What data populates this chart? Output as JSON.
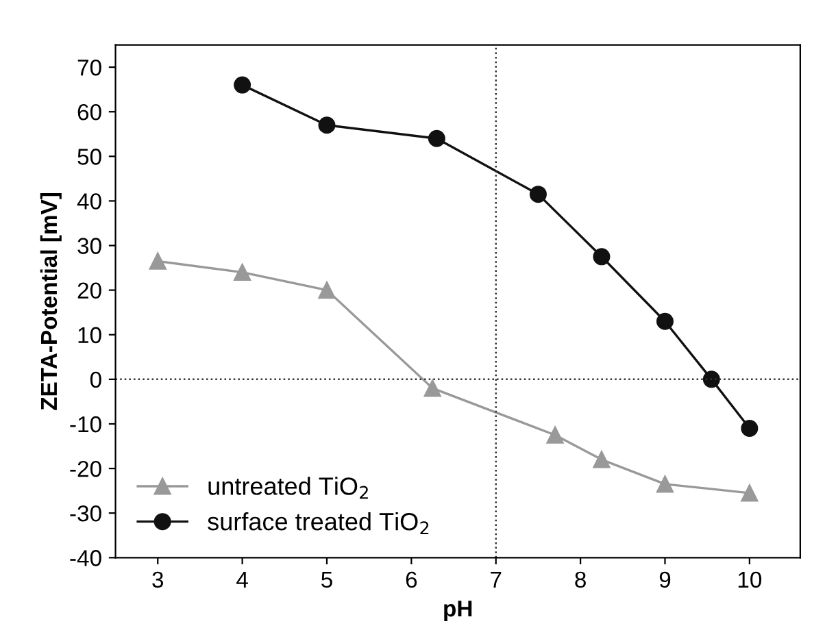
{
  "chart_data": {
    "type": "line",
    "xlabel": "pH",
    "ylabel": "ZETA-Potential [mV]",
    "xlim": [
      2.5,
      10.6
    ],
    "xticks": [
      3,
      4,
      5,
      6,
      7,
      8,
      9,
      10
    ],
    "ylim": [
      -40,
      75
    ],
    "yticks": [
      -40,
      -30,
      -20,
      -10,
      0,
      10,
      20,
      30,
      40,
      50,
      60,
      70
    ],
    "series": [
      {
        "name": "untreated TiO$_{2}$",
        "color": "#999999",
        "marker": "triangle",
        "x": [
          3,
          4,
          5,
          6.25,
          7.7,
          8.25,
          9,
          10
        ],
        "values": [
          26.5,
          24,
          20,
          -2,
          -12.5,
          -18,
          -23.5,
          -25.5
        ]
      },
      {
        "name": "surface treated TiO$_{2}$",
        "color": "#111111",
        "marker": "circle",
        "x": [
          4,
          5,
          6.3,
          7.5,
          8.25,
          9,
          9.55,
          10
        ],
        "values": [
          66,
          57,
          54,
          41.5,
          27.5,
          13,
          0,
          -11
        ]
      }
    ],
    "ref_lines": [
      {
        "axis": "x",
        "value": 7,
        "line_style": "dotted"
      },
      {
        "axis": "y",
        "value": 0,
        "line_style": "dotted"
      }
    ],
    "legend": "bottom left",
    "grid": false,
    "line_style": "solid"
  }
}
